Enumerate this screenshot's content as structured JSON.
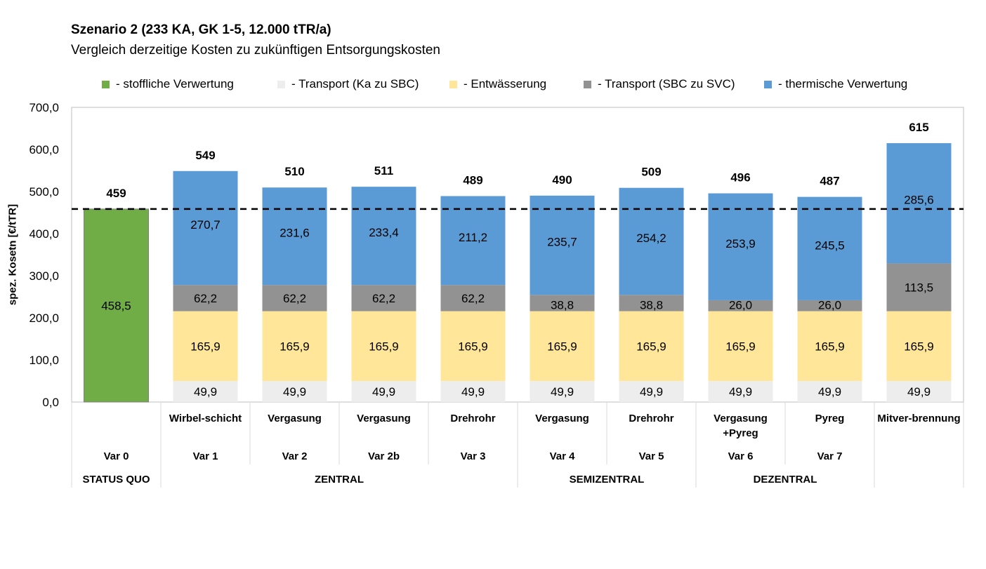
{
  "chart_data": {
    "type": "bar",
    "stacked": true,
    "title": "Szenario 2 (233 KA, GK 1-5, 12.000 tTR/a)",
    "subtitle": "Vergleich derzeitige Kosten zu zukünftigen  Entsorgungskosten",
    "xlabel": "",
    "ylabel": "spez. Kosetn [€/tTR]",
    "ylim": [
      0,
      700
    ],
    "yticks": [
      0,
      100,
      200,
      300,
      400,
      500,
      600,
      700
    ],
    "ytick_labels": [
      "0,0",
      "100,0",
      "200,0",
      "300,0",
      "400,0",
      "500,0",
      "600,0",
      "700,0"
    ],
    "grid": false,
    "legend_position": "top",
    "reference_line": {
      "value": 458.5,
      "style": "dashed",
      "color": "#000000"
    },
    "categories": [
      {
        "tech": "",
        "var": "Var 0"
      },
      {
        "tech": "Wirbel-schicht",
        "var": "Var 1"
      },
      {
        "tech": "Vergasung",
        "var": "Var 2"
      },
      {
        "tech": "Vergasung",
        "var": "Var 2b"
      },
      {
        "tech": "Drehrohr",
        "var": "Var 3"
      },
      {
        "tech": "Vergasung",
        "var": "Var 4"
      },
      {
        "tech": "Drehrohr",
        "var": "Var 5"
      },
      {
        "tech": "Vergasung\n+Pyreg",
        "var": "Var 6"
      },
      {
        "tech": "Pyreg",
        "var": "Var 7"
      },
      {
        "tech": "Mitver-brennung",
        "var": ""
      }
    ],
    "groups": [
      {
        "label": "STATUS QUO",
        "from": 0,
        "to": 0
      },
      {
        "label": "ZENTRAL",
        "from": 1,
        "to": 4
      },
      {
        "label": "SEMIZENTRAL",
        "from": 5,
        "to": 6
      },
      {
        "label": "DEZENTRAL",
        "from": 7,
        "to": 8
      },
      {
        "label": "",
        "from": 9,
        "to": 9
      }
    ],
    "series": [
      {
        "name": "- stoffliche Verwertung",
        "color": "#70AD47",
        "values": [
          458.5,
          0,
          0,
          0,
          0,
          0,
          0,
          0,
          0,
          0
        ],
        "labels": [
          "458,5",
          "",
          "",
          "",
          "",
          "",
          "",
          "",
          "",
          ""
        ]
      },
      {
        "name": "- Transport (Ka zu SBC)",
        "color": "#EDEDED",
        "values": [
          0,
          49.9,
          49.9,
          49.9,
          49.9,
          49.9,
          49.9,
          49.9,
          49.9,
          49.9
        ],
        "labels": [
          "",
          "49,9",
          "49,9",
          "49,9",
          "49,9",
          "49,9",
          "49,9",
          "49,9",
          "49,9",
          "49,9"
        ]
      },
      {
        "name": "- Entwässerung",
        "color": "#FFE699",
        "values": [
          0,
          165.9,
          165.9,
          165.9,
          165.9,
          165.9,
          165.9,
          165.9,
          165.9,
          165.9
        ],
        "labels": [
          "",
          "165,9",
          "165,9",
          "165,9",
          "165,9",
          "165,9",
          "165,9",
          "165,9",
          "165,9",
          "165,9"
        ]
      },
      {
        "name": "- Transport (SBC zu SVC)",
        "color": "#929292",
        "values": [
          0,
          62.2,
          62.2,
          62.2,
          62.2,
          38.8,
          38.8,
          26.0,
          26.0,
          113.5
        ],
        "labels": [
          "",
          "62,2",
          "62,2",
          "62,2",
          "62,2",
          "38,8",
          "38,8",
          "26,0",
          "26,0",
          "113,5"
        ]
      },
      {
        "name": "- thermische Verwertung",
        "color": "#5B9BD5",
        "values": [
          0,
          270.7,
          231.6,
          233.4,
          211.2,
          235.7,
          254.2,
          253.9,
          245.5,
          285.6
        ],
        "labels": [
          "",
          "270,7",
          "231,6",
          "233,4",
          "211,2",
          "235,7",
          "254,2",
          "253,9",
          "245,5",
          "285,6"
        ]
      }
    ],
    "totals": [
      459,
      549,
      510,
      511,
      489,
      490,
      509,
      496,
      487,
      615
    ]
  }
}
